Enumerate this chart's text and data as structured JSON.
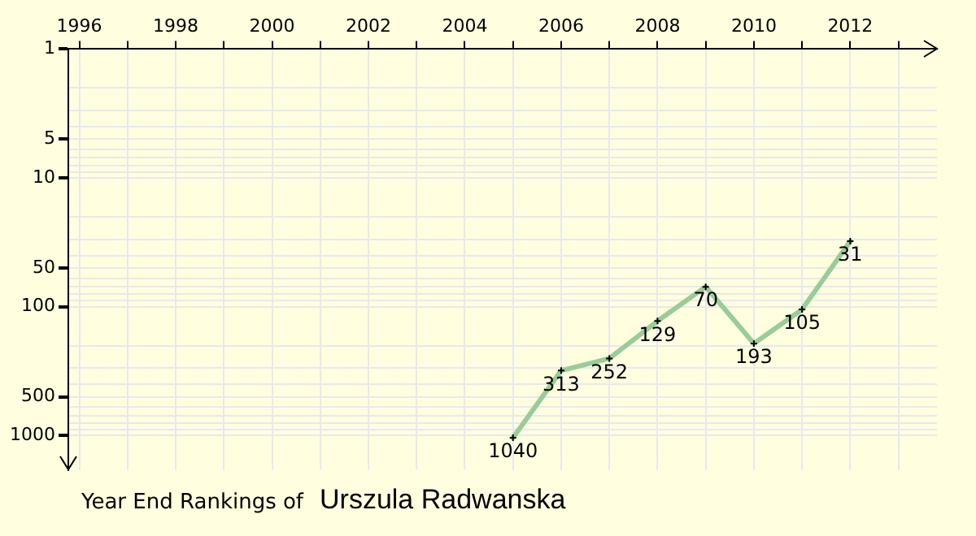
{
  "chart_data": {
    "type": "line",
    "title": "Year End Rankings of",
    "subtitle": "Urszula Radwanska",
    "x": [
      2005,
      2006,
      2007,
      2008,
      2009,
      2010,
      2011,
      2012
    ],
    "series": [
      {
        "color": "#99cc99",
        "values": [
          1040,
          313,
          252,
          129,
          70,
          193,
          105,
          31
        ]
      }
    ],
    "xlim": [
      1995.77,
      2013.8
    ],
    "xticks": [
      1996,
      {
        "value": 1997,
        "label": null
      },
      1998,
      {
        "value": 1999,
        "label": null
      },
      2000,
      {
        "value": 2001,
        "label": null
      },
      2002,
      {
        "value": 2003,
        "label": null
      },
      2004,
      {
        "value": 2005,
        "label": null
      },
      2006,
      {
        "value": 2007,
        "label": null
      },
      2008,
      {
        "value": 2009,
        "label": null
      },
      2010,
      {
        "value": 2011,
        "label": null
      },
      2012,
      {
        "value": 2013,
        "label": null
      }
    ],
    "ylim": [
      1850,
      1
    ],
    "yticks": [
      1,
      {
        "value": 2,
        "label": null
      },
      {
        "value": 3,
        "label": null
      },
      {
        "value": 4,
        "label": null
      },
      5,
      {
        "value": 6,
        "label": null
      },
      {
        "value": 7,
        "label": null
      },
      {
        "value": 8,
        "label": null
      },
      {
        "value": 9,
        "label": null
      },
      10,
      {
        "value": 20,
        "label": null
      },
      {
        "value": 30,
        "label": null
      },
      {
        "value": 40,
        "label": null
      },
      50,
      {
        "value": 60,
        "label": null
      },
      {
        "value": 70,
        "label": null
      },
      {
        "value": 80,
        "label": null
      },
      {
        "value": 90,
        "label": null
      },
      100,
      {
        "value": 200,
        "label": null
      },
      {
        "value": 300,
        "label": null
      },
      {
        "value": 400,
        "label": null
      },
      500,
      {
        "value": 600,
        "label": null
      },
      {
        "value": 700,
        "label": null
      },
      {
        "value": 800,
        "label": null
      },
      {
        "value": 900,
        "label": null
      },
      1000
    ],
    "log": true,
    "grid": true,
    "marker": "cross",
    "line_style": "solid",
    "data_labels": true
  }
}
